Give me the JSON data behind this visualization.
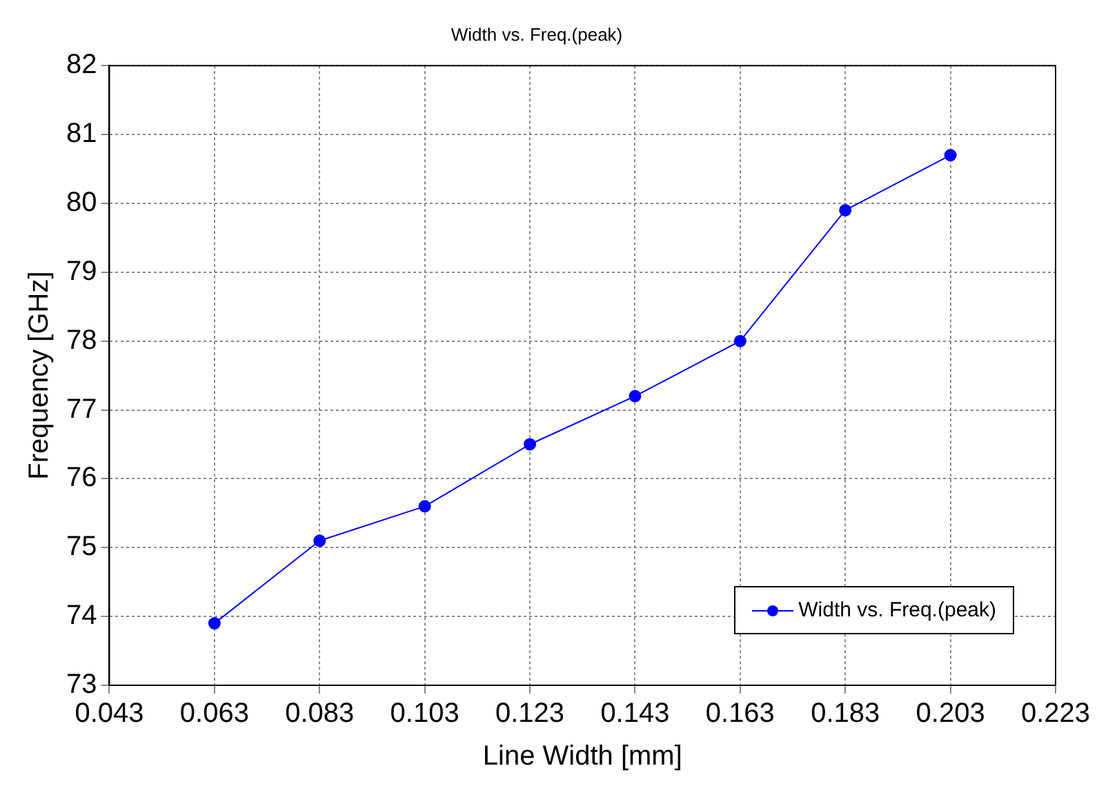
{
  "chart_data": {
    "type": "line",
    "title": "Width vs. Freq.(peak)",
    "xlabel": "Line Width [mm]",
    "ylabel": "Frequency [GHz]",
    "x": [
      0.063,
      0.083,
      0.103,
      0.123,
      0.143,
      0.163,
      0.183,
      0.203
    ],
    "series": [
      {
        "name": "Width vs. Freq.(peak)",
        "color": "#0000ff",
        "values": [
          73.9,
          75.1,
          75.6,
          76.5,
          77.2,
          78.0,
          79.9,
          80.7
        ]
      }
    ],
    "xlim": [
      0.043,
      0.223
    ],
    "xticks": [
      0.043,
      0.063,
      0.083,
      0.103,
      0.123,
      0.143,
      0.163,
      0.183,
      0.203,
      0.223
    ],
    "ylim": [
      73,
      82
    ],
    "yticks": [
      73,
      74,
      75,
      76,
      77,
      78,
      79,
      80,
      81,
      82
    ],
    "grid": true,
    "legend": "bottom right",
    "marker": "circle",
    "line_style": "solid"
  }
}
